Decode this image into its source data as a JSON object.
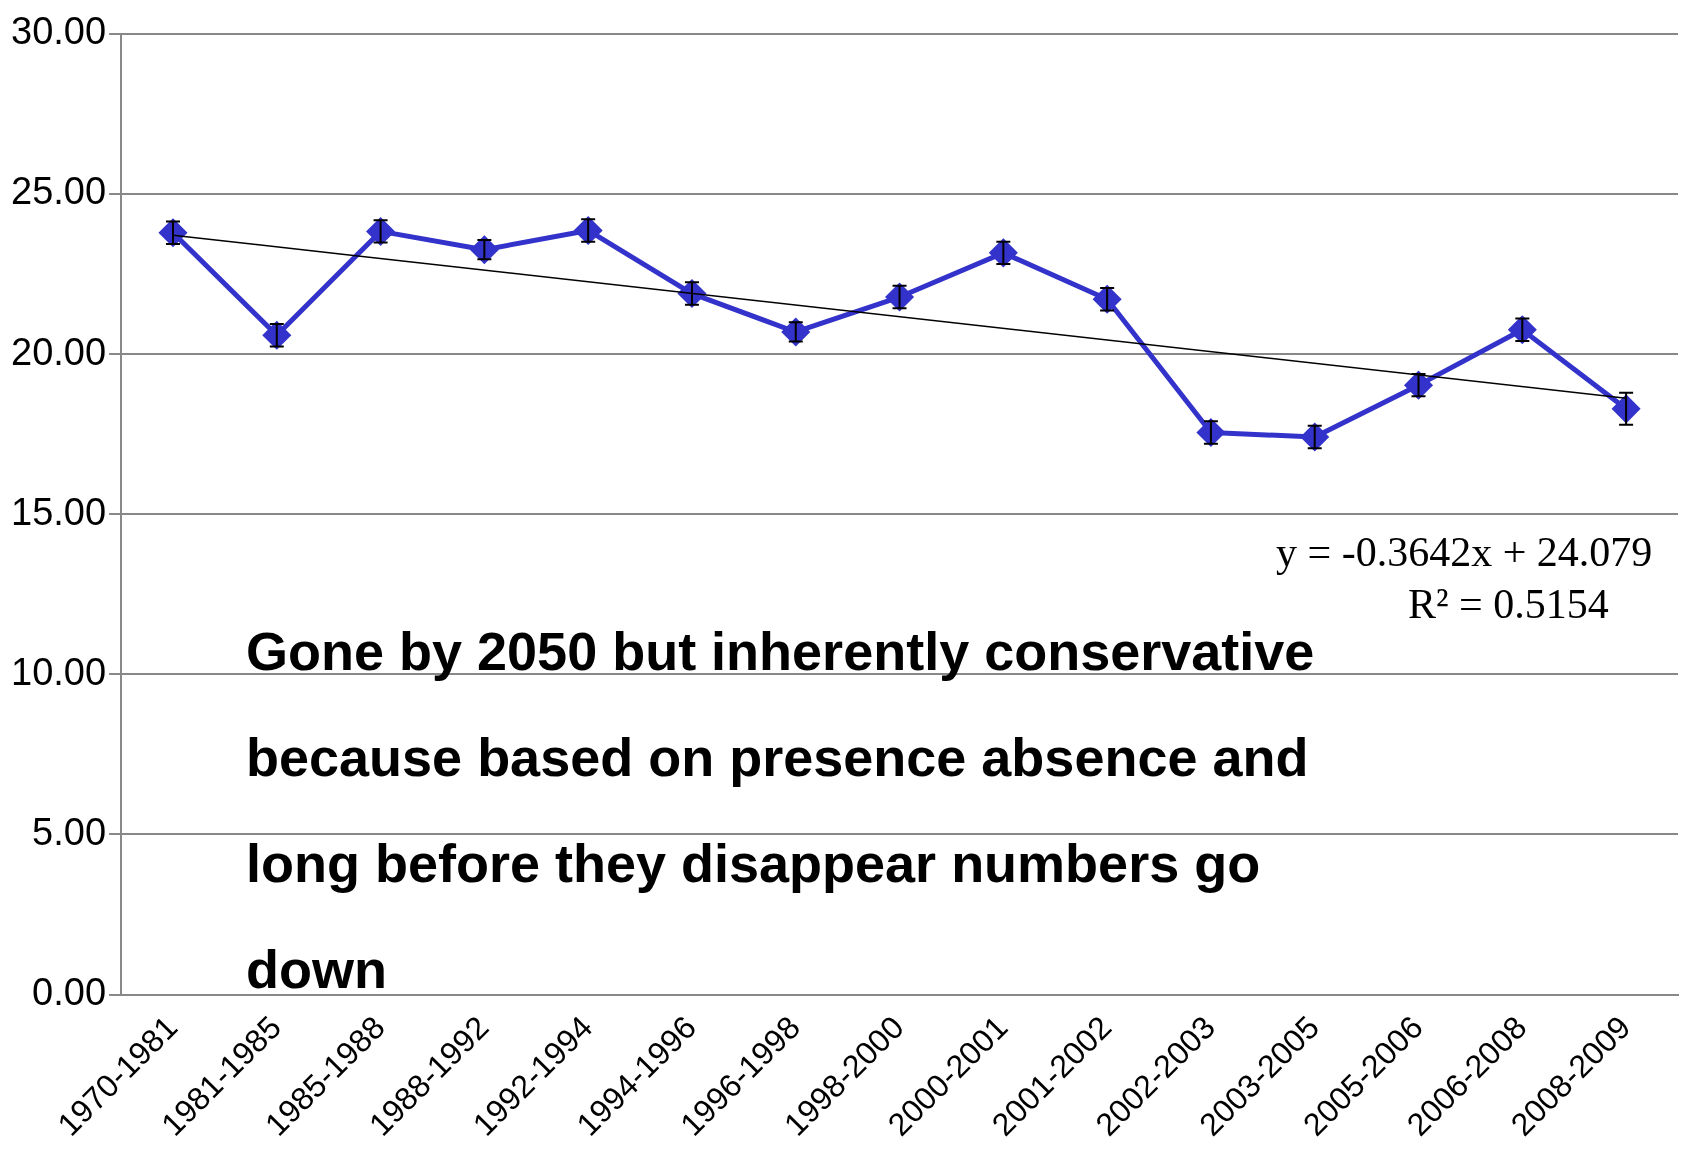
{
  "chart_data": {
    "type": "line",
    "categories": [
      "1970-1981",
      "1981-1985",
      "1985-1988",
      "1988-1992",
      "1992-1994",
      "1994-1996",
      "1996-1998",
      "1998-2000",
      "2000-2001",
      "2001-2002",
      "2002-2003",
      "2003-2005",
      "2005-2006",
      "2006-2008",
      "2008-2009"
    ],
    "series": [
      {
        "color": "#3333cc",
        "values": [
          23.79,
          20.59,
          23.83,
          23.26,
          23.86,
          21.89,
          20.69,
          21.78,
          23.16,
          21.71,
          17.55,
          17.41,
          19.03,
          20.76,
          18.29
        ],
        "errors": [
          0.35,
          0.35,
          0.35,
          0.3,
          0.35,
          0.35,
          0.3,
          0.35,
          0.35,
          0.35,
          0.35,
          0.35,
          0.35,
          0.35,
          0.5
        ],
        "marker": "diamond"
      },
      {
        "type": "line",
        "color": "#000000",
        "values": [
          23.71,
          null,
          null,
          null,
          null,
          null,
          null,
          null,
          null,
          null,
          null,
          null,
          null,
          null,
          18.62
        ],
        "marker": "none"
      }
    ],
    "ylim": [
      0,
      30
    ],
    "yticks": [
      {
        "value": 0,
        "label": "0.00"
      },
      {
        "value": 5,
        "label": "5.00"
      },
      {
        "value": 10,
        "label": "10.00"
      },
      {
        "value": 15,
        "label": "15.00"
      },
      {
        "value": 20,
        "label": "20.00"
      },
      {
        "value": 25,
        "label": "25.00"
      },
      {
        "value": 30,
        "label": "30.00"
      }
    ],
    "grid": "y",
    "legend": false,
    "annotations": [
      "y = -0.3642x + 24.079",
      "R² = 0.5154",
      "Gone by 2050 but inherently conservative because based on presence absence and long before they disappear numbers go down"
    ]
  }
}
